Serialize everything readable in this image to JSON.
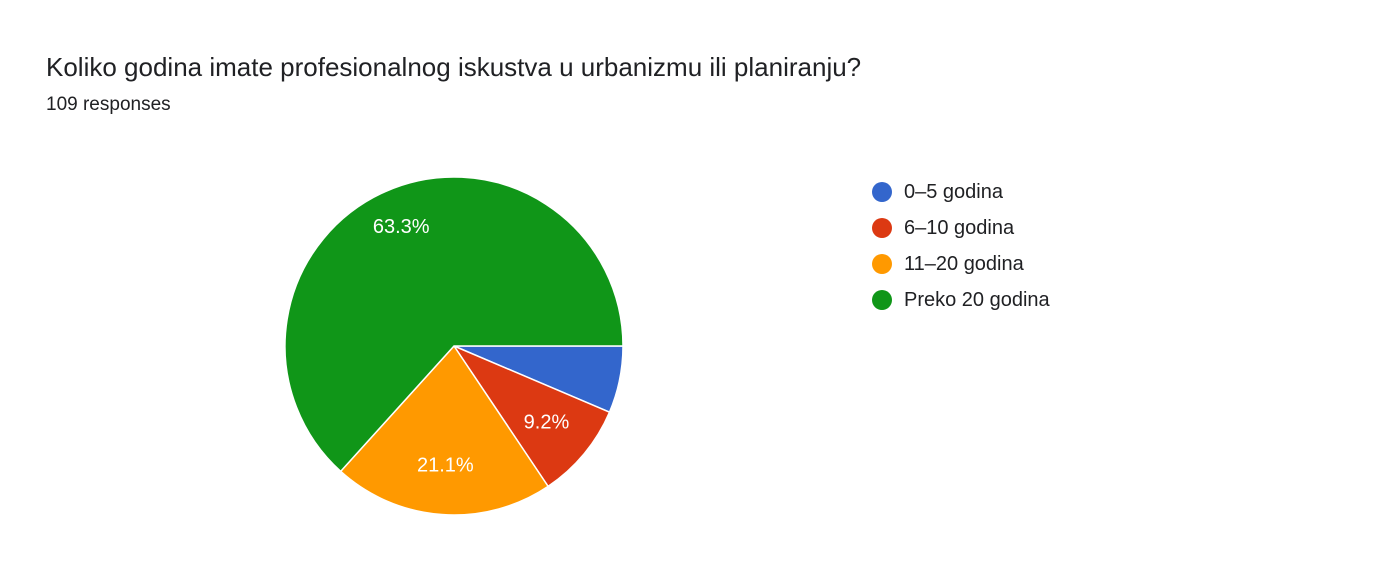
{
  "question": {
    "title": "Koliko godina imate profesionalnog iskustva u urbanizmu ili planiranju?",
    "responses": "109 responses"
  },
  "chart_data": {
    "type": "pie",
    "total_responses": 109,
    "slices": [
      {
        "name": "0–5 godina",
        "value": 6.4,
        "color": "#3366cc",
        "label": ""
      },
      {
        "name": "6–10 godina",
        "value": 9.2,
        "color": "#dc3912",
        "label": "9.2%"
      },
      {
        "name": "11–20 godina",
        "value": 21.1,
        "color": "#ff9900",
        "label": "21.1%"
      },
      {
        "name": "Preko 20 godina",
        "value": 63.3,
        "color": "#109618",
        "label": "63.3%"
      }
    ],
    "start_angle_deg": 90,
    "direction": "clockwise",
    "legend_position": "right"
  }
}
